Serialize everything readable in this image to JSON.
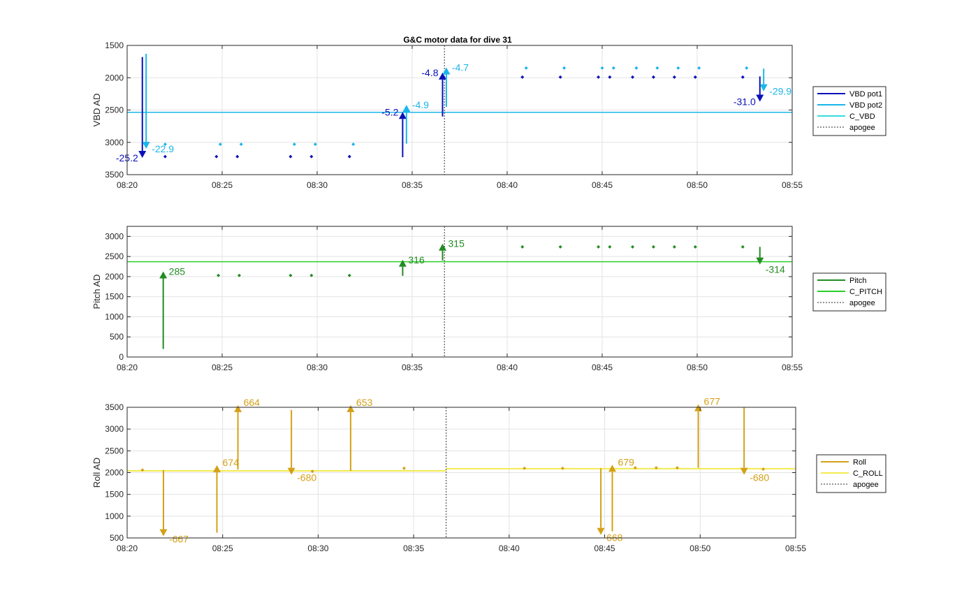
{
  "figure_title": "G&C motor data for dive 31",
  "colors": {
    "vbd1": "#0a10b8",
    "vbd2": "#1ab6ea",
    "c_vbd": "#38dcdc",
    "pitch": "#228b22",
    "c_pitch": "#28d028",
    "roll": "#d4a017",
    "c_roll": "#f2ea50",
    "apogee": "#555555"
  },
  "chart_data": [
    {
      "type": "line",
      "ylabel": "VBD AD",
      "x_ticks": [
        "08:20",
        "08:25",
        "08:30",
        "08:35",
        "08:40",
        "08:45",
        "08:50",
        "08:55"
      ],
      "xlim": [
        "08:20",
        "08:55"
      ],
      "ylim": [
        1500,
        3500
      ],
      "y_reversed": true,
      "y_ticks": [
        "1500",
        "2000",
        "2500",
        "3000",
        "3500"
      ],
      "grid": true,
      "legend": [
        "VBD pot1",
        "VBD pot2",
        "C_VBD",
        "apogee"
      ],
      "c_line": 2535,
      "apogee": "08:36.7",
      "series": [
        {
          "name": "VBD pot1",
          "points": [
            [
              "08:22",
              3220
            ],
            [
              "08:24.7",
              3220
            ],
            [
              "08:25.8",
              3220
            ],
            [
              "08:28.6",
              3220
            ],
            [
              "08:29.7",
              3220
            ],
            [
              "08:31.7",
              3220
            ],
            [
              "08:40.8",
              1990
            ],
            [
              "08:42.8",
              1990
            ],
            [
              "08:44.8",
              1990
            ],
            [
              "08:45.4",
              1990
            ],
            [
              "08:46.6",
              1990
            ],
            [
              "08:47.7",
              1990
            ],
            [
              "08:48.8",
              1990
            ],
            [
              "08:49.9",
              1990
            ],
            [
              "08:52.4",
              1990
            ]
          ]
        },
        {
          "name": "VBD pot2",
          "points": [
            [
              "08:22",
              3030
            ],
            [
              "08:24.9",
              3030
            ],
            [
              "08:26",
              3030
            ],
            [
              "08:28.8",
              3030
            ],
            [
              "08:29.9",
              3030
            ],
            [
              "08:31.9",
              3030
            ],
            [
              "08:41",
              1850
            ],
            [
              "08:43",
              1850
            ],
            [
              "08:45",
              1850
            ],
            [
              "08:45.6",
              1850
            ],
            [
              "08:46.8",
              1850
            ],
            [
              "08:47.9",
              1850
            ],
            [
              "08:49",
              1850
            ],
            [
              "08:50.1",
              1850
            ],
            [
              "08:52.6",
              1850
            ]
          ]
        }
      ],
      "arrows": [
        {
          "series": "VBD pot1",
          "x": "08:20.8",
          "from": 1680,
          "to": 3240,
          "label": "-25.2"
        },
        {
          "series": "VBD pot2",
          "x": "08:21",
          "from": 1630,
          "to": 3100,
          "label": "-22.9"
        },
        {
          "series": "VBD pot1",
          "x": "08:34.5",
          "from": 3230,
          "to": 2530,
          "label": "-5.2"
        },
        {
          "series": "VBD pot2",
          "x": "08:34.7",
          "from": 3020,
          "to": 2420,
          "label": "-4.9"
        },
        {
          "series": "VBD pot1",
          "x": "08:36.6",
          "from": 2600,
          "to": 1920,
          "label": "-4.8"
        },
        {
          "series": "VBD pot2",
          "x": "08:36.8",
          "from": 2450,
          "to": 1840,
          "label": "-4.7"
        },
        {
          "series": "VBD pot1",
          "x": "08:53.3",
          "from": 1980,
          "to": 2370,
          "label": "-31.0"
        },
        {
          "series": "VBD pot2",
          "x": "08:53.5",
          "from": 1860,
          "to": 2210,
          "label": "-29.9"
        }
      ]
    },
    {
      "type": "line",
      "ylabel": "Pitch AD",
      "x_ticks": [
        "08:20",
        "08:25",
        "08:30",
        "08:35",
        "08:40",
        "08:45",
        "08:50",
        "08:55"
      ],
      "xlim": [
        "08:20",
        "08:55"
      ],
      "ylim": [
        0,
        3250
      ],
      "y_ticks": [
        "0",
        "500",
        "1000",
        "1500",
        "2000",
        "2500",
        "3000"
      ],
      "grid": true,
      "legend": [
        "Pitch",
        "C_PITCH",
        "apogee"
      ],
      "c_line": 2370,
      "apogee": "08:36.7",
      "series": [
        {
          "name": "Pitch",
          "points": [
            [
              "08:24.8",
              2030
            ],
            [
              "08:25.9",
              2030
            ],
            [
              "08:28.6",
              2030
            ],
            [
              "08:29.7",
              2030
            ],
            [
              "08:31.7",
              2030
            ],
            [
              "08:40.8",
              2740
            ],
            [
              "08:42.8",
              2740
            ],
            [
              "08:44.8",
              2740
            ],
            [
              "08:45.4",
              2740
            ],
            [
              "08:46.6",
              2740
            ],
            [
              "08:47.7",
              2740
            ],
            [
              "08:48.8",
              2740
            ],
            [
              "08:49.9",
              2740
            ],
            [
              "08:52.4",
              2740
            ]
          ]
        }
      ],
      "arrows": [
        {
          "series": "Pitch",
          "x": "08:21.9",
          "from": 200,
          "to": 2130,
          "label": "285"
        },
        {
          "series": "Pitch",
          "x": "08:34.5",
          "from": 2020,
          "to": 2420,
          "label": "316"
        },
        {
          "series": "Pitch",
          "x": "08:36.6",
          "from": 2400,
          "to": 2820,
          "label": "315"
        },
        {
          "series": "Pitch",
          "x": "08:53.3",
          "from": 2740,
          "to": 2300,
          "label": "-314"
        }
      ]
    },
    {
      "type": "line",
      "ylabel": "Roll AD",
      "x_ticks": [
        "08:20",
        "08:25",
        "08:30",
        "08:35",
        "08:40",
        "08:45",
        "08:50",
        "08:55"
      ],
      "xlim": [
        "08:20",
        "08:55"
      ],
      "ylim": [
        500,
        3500
      ],
      "y_ticks": [
        "500",
        "1000",
        "1500",
        "2000",
        "2500",
        "3000",
        "3500"
      ],
      "grid": true,
      "legend": [
        "Roll",
        "C_ROLL",
        "apogee"
      ],
      "c_line_segments": [
        [
          "08:20",
          "08:36.7",
          2040
        ],
        [
          "08:36.7",
          "08:55",
          2090
        ]
      ],
      "apogee": "08:36.7",
      "series": [
        {
          "name": "Roll",
          "points": [
            [
              "08:20.8",
              2060
            ],
            [
              "08:29.7",
              2030
            ],
            [
              "08:34.5",
              2100
            ],
            [
              "08:40.8",
              2100
            ],
            [
              "08:42.8",
              2100
            ],
            [
              "08:46.6",
              2110
            ],
            [
              "08:47.7",
              2110
            ],
            [
              "08:48.8",
              2110
            ],
            [
              "08:53.3",
              2080
            ]
          ]
        }
      ],
      "arrows": [
        {
          "series": "Roll",
          "x": "08:21.9",
          "from": 2060,
          "to": 540,
          "label": "-667"
        },
        {
          "series": "Roll",
          "x": "08:24.7",
          "from": 620,
          "to": 2170,
          "label": "674"
        },
        {
          "series": "Roll",
          "x": "08:25.8",
          "from": 2070,
          "to": 3550,
          "label": "664"
        },
        {
          "series": "Roll",
          "x": "08:28.6",
          "from": 3440,
          "to": 1950,
          "label": "-680"
        },
        {
          "series": "Roll",
          "x": "08:31.7",
          "from": 2040,
          "to": 3550,
          "label": "653"
        },
        {
          "series": "Roll",
          "x": "08:44.8",
          "from": 2100,
          "to": 570,
          "label": "668"
        },
        {
          "series": "Roll",
          "x": "08:45.4",
          "from": 650,
          "to": 2180,
          "label": "679"
        },
        {
          "series": "Roll",
          "x": "08:49.9",
          "from": 2110,
          "to": 3570,
          "label": "677"
        },
        {
          "series": "Roll",
          "x": "08:52.3",
          "from": 3500,
          "to": 1950,
          "label": "-680"
        }
      ]
    }
  ]
}
